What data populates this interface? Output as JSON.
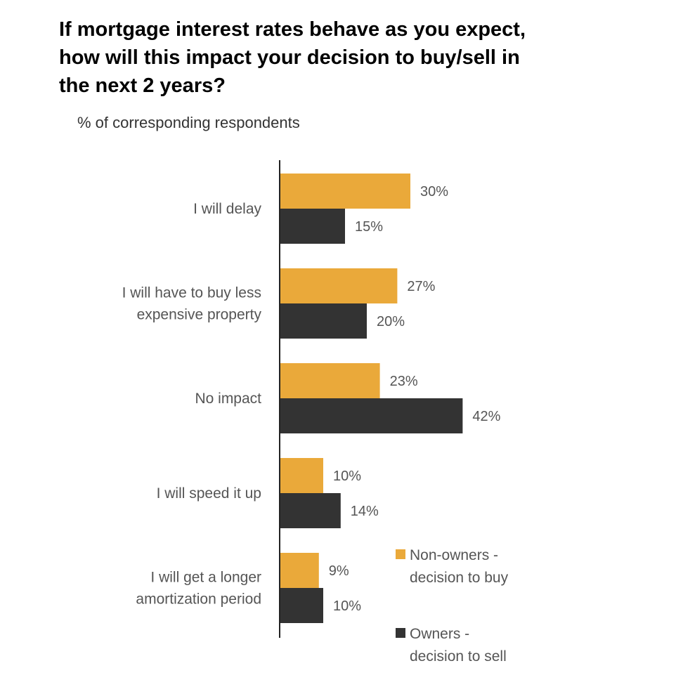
{
  "title_lines": [
    "If mortgage interest rates behave as you expect,",
    "how will this impact your decision to buy/sell in",
    "the next 2 years?"
  ],
  "subtitle": "% of corresponding respondents",
  "colors": {
    "non_owners": "#EAA93A",
    "owners": "#333333",
    "axis": "#222222",
    "text": "#555555"
  },
  "chart_data": {
    "type": "bar",
    "orientation": "horizontal",
    "title": "If mortgage interest rates behave as you expect, how will this impact your decision to buy/sell in the next 2 years?",
    "subtitle": "% of corresponding respondents",
    "categories": [
      [
        "I will delay"
      ],
      [
        "I will have to buy less",
        "expensive property"
      ],
      [
        "No impact"
      ],
      [
        "I will speed it up"
      ],
      [
        "I will get a longer",
        "amortization period"
      ]
    ],
    "series": [
      {
        "name": [
          "Non-owners -",
          "decision to buy"
        ],
        "values": [
          30,
          27,
          23,
          10,
          9
        ],
        "labels": [
          "30%",
          "27%",
          "23%",
          "10%",
          "9%"
        ]
      },
      {
        "name": [
          "Owners -",
          "decision to sell"
        ],
        "values": [
          15,
          20,
          42,
          14,
          10
        ],
        "labels": [
          "15%",
          "20%",
          "42%",
          "14%",
          "10%"
        ]
      }
    ],
    "xlim": [
      0,
      42
    ],
    "grid": false,
    "legend": "bottom-right"
  }
}
